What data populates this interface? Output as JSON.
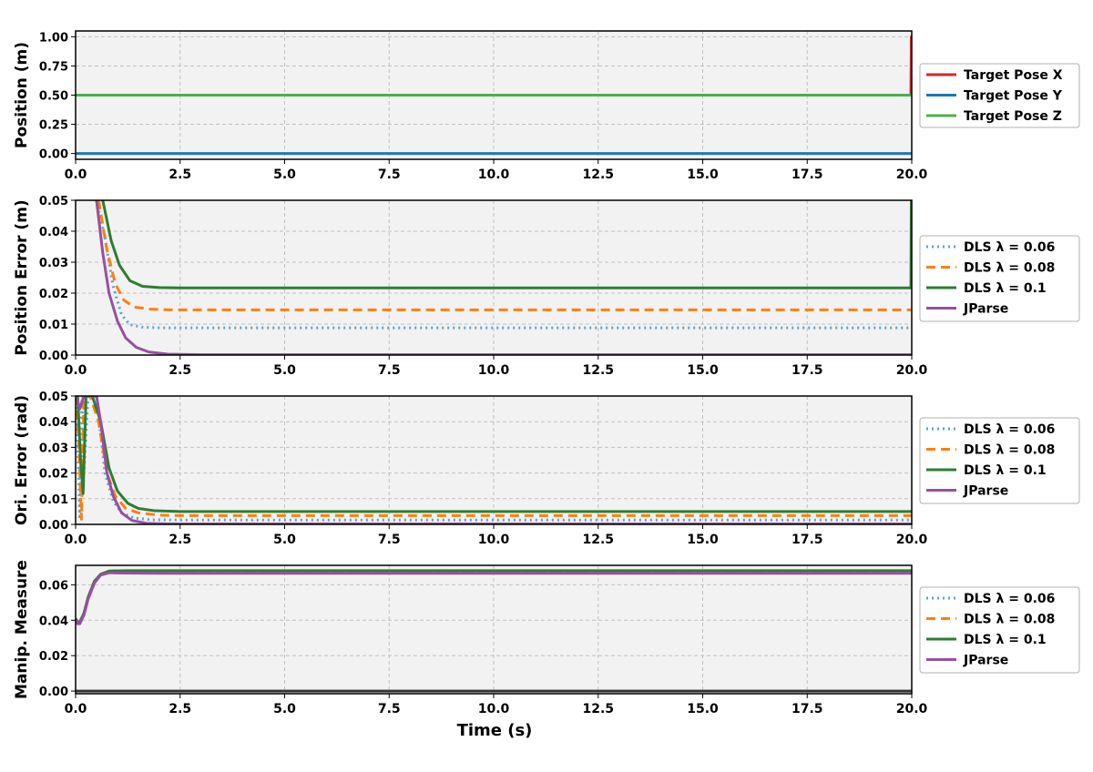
{
  "colors": {
    "red": "#d62728",
    "blue_solid": "#1f77b4",
    "green_light": "#4daf4a",
    "blue_dotted": "#5ba3d6",
    "orange": "#ff7f0e",
    "green_dark": "#2e7d32",
    "purple": "#984ea3",
    "background": "#f2f2f2",
    "grid": "#c0c0c0",
    "zero_line": "#333333"
  },
  "chart_data": [
    {
      "type": "line",
      "ylabel": "Position (m)",
      "xlabel": "",
      "xlim": [
        0,
        20
      ],
      "ylim": [
        -0.05,
        1.05
      ],
      "xticks": [
        0,
        2.5,
        5,
        7.5,
        10,
        12.5,
        15,
        17.5,
        20
      ],
      "xtick_labels": [
        "0.0",
        "2.5",
        "5.0",
        "7.5",
        "10.0",
        "12.5",
        "15.0",
        "17.5",
        "20.0"
      ],
      "yticks": [
        0,
        0.25,
        0.5,
        0.75,
        1.0
      ],
      "ytick_labels": [
        "0.00",
        "0.25",
        "0.50",
        "0.75",
        "1.00"
      ],
      "grid": true,
      "legend_placement": "outside-right",
      "series": [
        {
          "name": "Target Pose X",
          "color": "#d62728",
          "style": "solid",
          "points": [
            [
              0,
              0.5
            ],
            [
              19.98,
              0.5
            ],
            [
              19.99,
              1.0
            ],
            [
              20,
              1.0
            ]
          ]
        },
        {
          "name": "Target Pose Y",
          "color": "#1f77b4",
          "style": "solid",
          "points": [
            [
              0,
              0
            ],
            [
              20,
              0
            ]
          ]
        },
        {
          "name": "Target Pose Z",
          "color": "#4daf4a",
          "style": "solid",
          "points": [
            [
              0,
              0.5
            ],
            [
              20,
              0.5
            ]
          ]
        }
      ]
    },
    {
      "type": "line",
      "ylabel": "Position Error (m)",
      "xlabel": "",
      "xlim": [
        0,
        20
      ],
      "ylim": [
        0,
        0.05
      ],
      "xticks": [
        0,
        2.5,
        5,
        7.5,
        10,
        12.5,
        15,
        17.5,
        20
      ],
      "xtick_labels": [
        "0.0",
        "2.5",
        "5.0",
        "7.5",
        "10.0",
        "12.5",
        "15.0",
        "17.5",
        "20.0"
      ],
      "yticks": [
        0,
        0.01,
        0.02,
        0.03,
        0.04,
        0.05
      ],
      "ytick_labels": [
        "0.00",
        "0.01",
        "0.02",
        "0.03",
        "0.04",
        "0.05"
      ],
      "grid": true,
      "legend_placement": "outside-right",
      "series": [
        {
          "name": "DLS λ = 0.06",
          "color": "#5ba3d6",
          "style": "dotted",
          "points": [
            [
              0.5,
              0.05
            ],
            [
              0.7,
              0.038
            ],
            [
              0.9,
              0.022
            ],
            [
              1.1,
              0.013
            ],
            [
              1.3,
              0.0098
            ],
            [
              1.6,
              0.009
            ],
            [
              2.0,
              0.0088
            ],
            [
              20,
              0.0088
            ]
          ]
        },
        {
          "name": "DLS λ = 0.08",
          "color": "#ff7f0e",
          "style": "dashed",
          "points": [
            [
              0.55,
              0.05
            ],
            [
              0.75,
              0.034
            ],
            [
              0.95,
              0.023
            ],
            [
              1.15,
              0.0178
            ],
            [
              1.4,
              0.0155
            ],
            [
              1.8,
              0.0148
            ],
            [
              2.3,
              0.0146
            ],
            [
              20,
              0.0146
            ]
          ]
        },
        {
          "name": "DLS λ = 0.1",
          "color": "#2e7d32",
          "style": "solid",
          "points": [
            [
              0.65,
              0.05
            ],
            [
              0.85,
              0.037
            ],
            [
              1.05,
              0.029
            ],
            [
              1.3,
              0.024
            ],
            [
              1.6,
              0.0222
            ],
            [
              2.0,
              0.0218
            ],
            [
              2.5,
              0.0217
            ],
            [
              19.98,
              0.0217
            ],
            [
              19.99,
              0.05
            ],
            [
              20,
              0.05
            ]
          ]
        },
        {
          "name": "JParse",
          "color": "#984ea3",
          "style": "solid",
          "points": [
            [
              0.5,
              0.05
            ],
            [
              0.65,
              0.033
            ],
            [
              0.8,
              0.02
            ],
            [
              1.0,
              0.011
            ],
            [
              1.2,
              0.0055
            ],
            [
              1.45,
              0.0025
            ],
            [
              1.75,
              0.001
            ],
            [
              2.2,
              0.0003
            ],
            [
              3.0,
              0.0001
            ],
            [
              20,
              0.0001
            ]
          ]
        }
      ]
    },
    {
      "type": "line",
      "ylabel": "Ori. Error (rad)",
      "xlabel": "",
      "xlim": [
        0,
        20
      ],
      "ylim": [
        0,
        0.05
      ],
      "xticks": [
        0,
        2.5,
        5,
        7.5,
        10,
        12.5,
        15,
        17.5,
        20
      ],
      "xtick_labels": [
        "0.0",
        "2.5",
        "5.0",
        "7.5",
        "10.0",
        "12.5",
        "15.0",
        "17.5",
        "20.0"
      ],
      "yticks": [
        0,
        0.01,
        0.02,
        0.03,
        0.04,
        0.05
      ],
      "ytick_labels": [
        "0.00",
        "0.01",
        "0.02",
        "0.03",
        "0.04",
        "0.05"
      ],
      "grid": true,
      "legend_placement": "outside-right",
      "series": [
        {
          "name": "DLS λ = 0.06",
          "color": "#5ba3d6",
          "style": "dotted",
          "points": [
            [
              0.02,
              0.05
            ],
            [
              0.1,
              0.002
            ],
            [
              0.15,
              0.05
            ],
            [
              0.2,
              0.02
            ],
            [
              0.3,
              0.05
            ],
            [
              0.5,
              0.05
            ],
            [
              0.7,
              0.02
            ],
            [
              0.9,
              0.009
            ],
            [
              1.1,
              0.0045
            ],
            [
              1.4,
              0.0025
            ],
            [
              1.8,
              0.0018
            ],
            [
              2.5,
              0.0017
            ],
            [
              20,
              0.0017
            ]
          ]
        },
        {
          "name": "DLS λ = 0.08",
          "color": "#ff7f0e",
          "style": "dashed",
          "points": [
            [
              0.02,
              0.05
            ],
            [
              0.08,
              0.03
            ],
            [
              0.14,
              0.002
            ],
            [
              0.2,
              0.05
            ],
            [
              0.35,
              0.05
            ],
            [
              0.55,
              0.04
            ],
            [
              0.75,
              0.02
            ],
            [
              0.95,
              0.011
            ],
            [
              1.2,
              0.0062
            ],
            [
              1.5,
              0.0045
            ],
            [
              2.0,
              0.0036
            ],
            [
              2.5,
              0.0034
            ],
            [
              20,
              0.0034
            ]
          ]
        },
        {
          "name": "DLS λ = 0.1",
          "color": "#2e7d32",
          "style": "solid",
          "points": [
            [
              0.05,
              0.05
            ],
            [
              0.12,
              0.025
            ],
            [
              0.18,
              0.012
            ],
            [
              0.25,
              0.05
            ],
            [
              0.4,
              0.05
            ],
            [
              0.6,
              0.04
            ],
            [
              0.8,
              0.022
            ],
            [
              1.0,
              0.013
            ],
            [
              1.25,
              0.0082
            ],
            [
              1.5,
              0.0062
            ],
            [
              1.9,
              0.0053
            ],
            [
              2.5,
              0.005
            ],
            [
              20,
              0.005
            ]
          ]
        },
        {
          "name": "JParse",
          "color": "#984ea3",
          "style": "solid",
          "points": [
            [
              0.02,
              0.05
            ],
            [
              0.1,
              0.045
            ],
            [
              0.2,
              0.05
            ],
            [
              0.5,
              0.05
            ],
            [
              0.6,
              0.04
            ],
            [
              0.75,
              0.02
            ],
            [
              0.9,
              0.011
            ],
            [
              1.1,
              0.0045
            ],
            [
              1.35,
              0.0015
            ],
            [
              1.7,
              0.0004
            ],
            [
              2.2,
              0.0002
            ],
            [
              20,
              0.0002
            ]
          ]
        }
      ]
    },
    {
      "type": "line",
      "ylabel": "Manip. Measure",
      "xlabel": "Time (s)",
      "xlim": [
        0,
        20
      ],
      "ylim": [
        -0.0015,
        0.071
      ],
      "xticks": [
        0,
        2.5,
        5,
        7.5,
        10,
        12.5,
        15,
        17.5,
        20
      ],
      "xtick_labels": [
        "0.0",
        "2.5",
        "5.0",
        "7.5",
        "10.0",
        "12.5",
        "15.0",
        "17.5",
        "20.0"
      ],
      "yticks": [
        0,
        0.02,
        0.04,
        0.06
      ],
      "ytick_labels": [
        "0.00",
        "0.02",
        "0.04",
        "0.06"
      ],
      "grid": true,
      "legend_placement": "outside-right",
      "series": [
        {
          "name": "DLS λ = 0.06",
          "color": "#5ba3d6",
          "style": "dotted",
          "points": [
            [
              0,
              0.041
            ],
            [
              0.05,
              0.039
            ],
            [
              0.1,
              0.039
            ],
            [
              0.2,
              0.044
            ],
            [
              0.3,
              0.053
            ],
            [
              0.45,
              0.062
            ],
            [
              0.6,
              0.066
            ],
            [
              0.8,
              0.0675
            ],
            [
              1.2,
              0.0674
            ],
            [
              2.0,
              0.0672
            ],
            [
              20,
              0.0672
            ]
          ]
        },
        {
          "name": "DLS λ = 0.08",
          "color": "#ff7f0e",
          "style": "dashed",
          "points": [
            [
              0,
              0.041
            ],
            [
              0.05,
              0.039
            ],
            [
              0.1,
              0.039
            ],
            [
              0.2,
              0.044
            ],
            [
              0.3,
              0.053
            ],
            [
              0.45,
              0.062
            ],
            [
              0.6,
              0.066
            ],
            [
              0.8,
              0.0676
            ],
            [
              1.2,
              0.0676
            ],
            [
              2.0,
              0.0675
            ],
            [
              20,
              0.0675
            ]
          ]
        },
        {
          "name": "DLS λ = 0.1",
          "color": "#2e7d32",
          "style": "solid",
          "points": [
            [
              0,
              0.041
            ],
            [
              0.05,
              0.039
            ],
            [
              0.1,
              0.039
            ],
            [
              0.2,
              0.044
            ],
            [
              0.3,
              0.053
            ],
            [
              0.45,
              0.062
            ],
            [
              0.6,
              0.066
            ],
            [
              0.8,
              0.0678
            ],
            [
              1.2,
              0.068
            ],
            [
              2.0,
              0.068
            ],
            [
              20,
              0.068
            ]
          ]
        },
        {
          "name": "JParse",
          "color": "#984ea3",
          "style": "solid",
          "points": [
            [
              0,
              0.041
            ],
            [
              0.05,
              0.038
            ],
            [
              0.1,
              0.038
            ],
            [
              0.2,
              0.043
            ],
            [
              0.3,
              0.052
            ],
            [
              0.45,
              0.061
            ],
            [
              0.6,
              0.0655
            ],
            [
              0.8,
              0.0668
            ],
            [
              1.2,
              0.0666
            ],
            [
              2.0,
              0.0665
            ],
            [
              20,
              0.0665
            ]
          ]
        },
        {
          "name": "",
          "color": "#333333",
          "style": "solid",
          "points": [
            [
              0,
              0
            ],
            [
              20,
              0
            ]
          ]
        }
      ]
    }
  ]
}
